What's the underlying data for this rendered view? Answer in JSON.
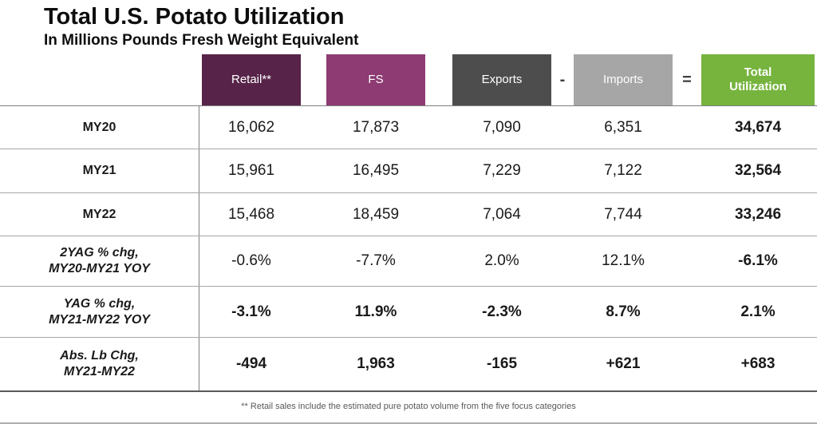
{
  "title": "Total U.S. Potato Utilization",
  "subtitle": "In Millions Pounds Fresh Weight Equivalent",
  "colors": {
    "retail": "#572349",
    "fs": "#8D3B72",
    "exports": "#4D4D4D",
    "imports": "#A6A6A6",
    "total": "#76B43E",
    "text": "#1A1A1A",
    "footnote_text": "#595959",
    "grid_line": "#A6A6A6"
  },
  "header": {
    "retail": {
      "label": "Retail**",
      "color": "#572349"
    },
    "fs": {
      "label": "FS",
      "color": "#8D3B72"
    },
    "exports": {
      "label": "Exports",
      "color": "#4D4D4D"
    },
    "operator_minus": "-",
    "imports": {
      "label": "Imports",
      "color": "#A6A6A6"
    },
    "operator_equals": "=",
    "total": {
      "label_line1": "Total",
      "label_line2": "Utilization",
      "color": "#76B43E"
    }
  },
  "rows": [
    {
      "label_line1": "MY20",
      "label_line2": "",
      "values": [
        "16,062",
        "17,873",
        "7,090",
        "6,351",
        "34,674"
      ]
    },
    {
      "label_line1": "MY21",
      "label_line2": "",
      "values": [
        "15,961",
        "16,495",
        "7,229",
        "7,122",
        "32,564"
      ]
    },
    {
      "label_line1": "MY22",
      "label_line2": "",
      "values": [
        "15,468",
        "18,459",
        "7,064",
        "7,744",
        "33,246"
      ]
    },
    {
      "label_line1": "2YAG % chg,",
      "label_line2": "MY20-MY21 YOY",
      "values": [
        "-0.6%",
        "-7.7%",
        "2.0%",
        "12.1%",
        "-6.1%"
      ]
    },
    {
      "label_line1": "YAG % chg,",
      "label_line2": "MY21-MY22 YOY",
      "values": [
        "-3.1%",
        "11.9%",
        "-2.3%",
        "8.7%",
        "2.1%"
      ]
    },
    {
      "label_line1": "Abs. Lb Chg,",
      "label_line2": "MY21-MY22",
      "values": [
        "-494",
        "1,963",
        "-165",
        "+621",
        "+683"
      ]
    }
  ],
  "footnote": "** Retail sales include the estimated pure potato volume from the five focus categories",
  "chart_data": {
    "type": "table",
    "title": "Total U.S. Potato Utilization",
    "subtitle": "In Millions Pounds Fresh Weight Equivalent",
    "columns": [
      "Retail**",
      "FS",
      "Exports",
      "Imports",
      "Total Utilization"
    ],
    "operators_between_columns": {
      "Exports_Imports": "-",
      "Imports_Total": "="
    },
    "rows": [
      {
        "label": "MY20",
        "values": [
          16062,
          17873,
          7090,
          6351,
          34674
        ]
      },
      {
        "label": "MY21",
        "values": [
          15961,
          16495,
          7229,
          7122,
          32564
        ]
      },
      {
        "label": "MY22",
        "values": [
          15468,
          18459,
          7064,
          7744,
          33246
        ]
      },
      {
        "label": "2YAG % chg, MY20-MY21 YOY",
        "values": [
          "-0.6%",
          "-7.7%",
          "2.0%",
          "12.1%",
          "-6.1%"
        ]
      },
      {
        "label": "YAG % chg, MY21-MY22 YOY",
        "values": [
          "-3.1%",
          "11.9%",
          "-2.3%",
          "8.7%",
          "2.1%"
        ]
      },
      {
        "label": "Abs. Lb Chg, MY21-MY22",
        "values": [
          -494,
          1963,
          -165,
          621,
          683
        ]
      }
    ],
    "footnote": "** Retail sales include the estimated pure potato volume from the five focus categories"
  }
}
